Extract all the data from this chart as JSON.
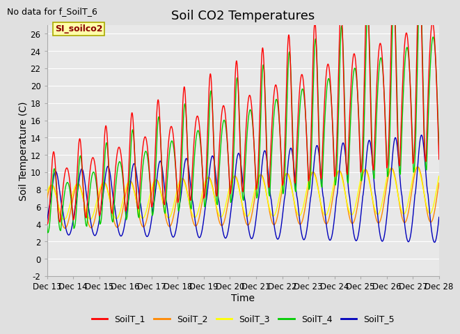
{
  "title": "Soil CO2 Temperatures",
  "xlabel": "Time",
  "ylabel": "Soil Temperature (C)",
  "no_data_text": "No data for f_SoilT_6",
  "annotation_text": "SI_soilco2",
  "ylim": [
    -2,
    27
  ],
  "xlim": [
    0,
    15
  ],
  "x_tick_labels": [
    "Dec 13",
    "Dec 14",
    "Dec 15",
    "Dec 16",
    "Dec 17",
    "Dec 18",
    "Dec 19",
    "Dec 20",
    "Dec 21",
    "Dec 22",
    "Dec 23",
    "Dec 24",
    "Dec 25",
    "Dec 26",
    "Dec 27",
    "Dec 28"
  ],
  "yticks": [
    -2,
    0,
    2,
    4,
    6,
    8,
    10,
    12,
    14,
    16,
    18,
    20,
    22,
    24,
    26
  ],
  "colors": {
    "SoilT_1": "#ff0000",
    "SoilT_2": "#ff8800",
    "SoilT_3": "#ffff00",
    "SoilT_4": "#00cc00",
    "SoilT_5": "#0000bb"
  },
  "bg_color": "#e0e0e0",
  "plot_bg": "#e8e8e8",
  "grid_color": "#ffffff",
  "title_fontsize": 13,
  "axis_label_fontsize": 10,
  "tick_fontsize": 8.5
}
